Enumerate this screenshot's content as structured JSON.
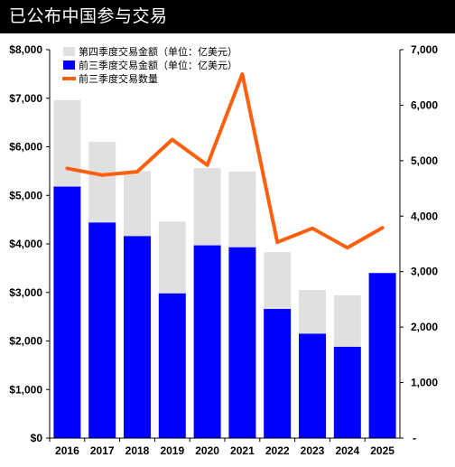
{
  "header": {
    "title": "已公布中国参与交易"
  },
  "chart_data": {
    "type": "bar",
    "categories": [
      "2016",
      "2017",
      "2018",
      "2019",
      "2020",
      "2021",
      "2022",
      "2023",
      "2024",
      "2025"
    ],
    "series": [
      {
        "name": "前三季度交易金额（单位：亿美元）",
        "kind": "bar",
        "axis": "left",
        "color": "#0000FF",
        "values": [
          5180,
          4440,
          4160,
          2980,
          3970,
          3930,
          2660,
          2150,
          1880,
          3400
        ]
      },
      {
        "name": "第四季度交易金额（单位：亿美元）",
        "kind": "bar-stack",
        "axis": "left",
        "color": "#E0E0E0",
        "values": [
          1780,
          1660,
          1340,
          1480,
          1590,
          1560,
          1170,
          900,
          1060,
          null
        ]
      },
      {
        "name": "前三季度交易数量",
        "kind": "line",
        "axis": "right",
        "color": "#FF5F0F",
        "values": [
          4860,
          4740,
          4800,
          5380,
          4920,
          6560,
          3530,
          3780,
          3430,
          3790
        ]
      }
    ],
    "y_left": {
      "ylim": [
        0,
        8000
      ],
      "ticks": [
        "$0",
        "$1,000",
        "$2,000",
        "$3,000",
        "$4,000",
        "$5,000",
        "$6,000",
        "$7,000",
        "$8,000"
      ]
    },
    "y_right": {
      "ylim": [
        0,
        7000
      ],
      "ticks": [
        "-",
        "1,000",
        "2,000",
        "3,000",
        "4,000",
        "5,000",
        "6,000",
        "7,000"
      ]
    },
    "legend": {
      "position": "top-left",
      "items": [
        {
          "label": "第四季度交易金额（单位：亿美元）",
          "swatch": "box",
          "color": "#E0E0E0"
        },
        {
          "label": "前三季度交易金额（单位：亿美元）",
          "swatch": "box",
          "color": "#0000FF"
        },
        {
          "label": "前三季度交易数量",
          "swatch": "line",
          "color": "#FF5F0F"
        }
      ]
    },
    "grid": false
  }
}
